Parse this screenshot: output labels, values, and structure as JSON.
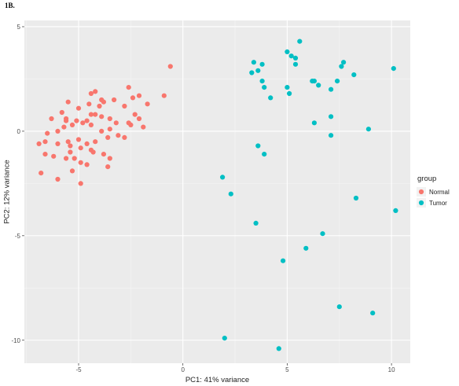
{
  "figure_label": "1B.",
  "chart_data": {
    "type": "scatter",
    "title": "",
    "xlabel": "PC1: 41% variance",
    "ylabel": "PC2: 12% variance",
    "xlim": [
      -7.6,
      10.9
    ],
    "ylim": [
      -11.1,
      5.3
    ],
    "x_ticks": [
      -5,
      0,
      5,
      10
    ],
    "y_ticks": [
      5,
      0,
      -5,
      -10
    ],
    "x_tick_labels": [
      "-5",
      "0",
      "5",
      "10"
    ],
    "y_tick_labels": [
      "5",
      "0",
      "-5",
      "-10"
    ],
    "grid": true,
    "legend_position": "right",
    "legend_title": "group",
    "series": [
      {
        "name": "Normal",
        "color": "#F8766D",
        "points": [
          [
            -0.6,
            3.1
          ],
          [
            -0.9,
            1.7
          ],
          [
            -2.6,
            2.1
          ],
          [
            -2.4,
            1.6
          ],
          [
            -2.1,
            1.7
          ],
          [
            -1.7,
            1.3
          ],
          [
            -2.3,
            0.8
          ],
          [
            -2.8,
            1.2
          ],
          [
            -3.3,
            1.5
          ],
          [
            -3.9,
            1.5
          ],
          [
            -3.8,
            1.4
          ],
          [
            -4.4,
            1.8
          ],
          [
            -4.2,
            1.9
          ],
          [
            -4.0,
            1.2
          ],
          [
            -4.5,
            1.3
          ],
          [
            -5.5,
            1.4
          ],
          [
            -5.0,
            1.1
          ],
          [
            -5.8,
            0.9
          ],
          [
            -6.3,
            0.6
          ],
          [
            -5.6,
            0.6
          ],
          [
            -5.6,
            0.5
          ],
          [
            -5.1,
            0.5
          ],
          [
            -4.6,
            0.5
          ],
          [
            -4.4,
            0.8
          ],
          [
            -4.2,
            0.8
          ],
          [
            -3.9,
            0.7
          ],
          [
            -3.5,
            0.6
          ],
          [
            -3.2,
            0.4
          ],
          [
            -2.6,
            0.4
          ],
          [
            -2.5,
            0.3
          ],
          [
            -2.1,
            0.6
          ],
          [
            -1.9,
            0.2
          ],
          [
            -3.5,
            0.1
          ],
          [
            -3.9,
            0.0
          ],
          [
            -4.4,
            0.3
          ],
          [
            -4.8,
            0.4
          ],
          [
            -5.3,
            0.3
          ],
          [
            -5.7,
            0.2
          ],
          [
            -6.0,
            0.0
          ],
          [
            -6.5,
            -0.1
          ],
          [
            -6.9,
            -0.6
          ],
          [
            -6.6,
            -0.5
          ],
          [
            -6.0,
            -0.6
          ],
          [
            -5.5,
            -0.5
          ],
          [
            -5.0,
            -0.4
          ],
          [
            -4.6,
            -0.6
          ],
          [
            -4.2,
            -0.5
          ],
          [
            -3.6,
            -0.3
          ],
          [
            -3.1,
            -0.2
          ],
          [
            -2.8,
            -0.3
          ],
          [
            -4.4,
            -0.9
          ],
          [
            -4.3,
            -1.0
          ],
          [
            -4.9,
            -0.8
          ],
          [
            -5.4,
            -1.0
          ],
          [
            -5.6,
            -1.3
          ],
          [
            -6.2,
            -1.2
          ],
          [
            -6.6,
            -1.1
          ],
          [
            -5.2,
            -1.3
          ],
          [
            -4.9,
            -1.5
          ],
          [
            -4.6,
            -1.6
          ],
          [
            -3.5,
            -1.3
          ],
          [
            -3.6,
            -1.7
          ],
          [
            -6.8,
            -2.0
          ],
          [
            -6.0,
            -2.3
          ],
          [
            -5.3,
            -1.9
          ],
          [
            -4.9,
            -2.5
          ],
          [
            -3.8,
            -1.1
          ],
          [
            -5.4,
            -0.7
          ]
        ]
      },
      {
        "name": "Tumor",
        "color": "#00BFC4",
        "points": [
          [
            5.6,
            4.3
          ],
          [
            5.0,
            3.8
          ],
          [
            5.2,
            3.6
          ],
          [
            5.4,
            3.5
          ],
          [
            5.4,
            3.2
          ],
          [
            3.4,
            3.3
          ],
          [
            3.8,
            3.2
          ],
          [
            3.6,
            2.9
          ],
          [
            3.3,
            2.8
          ],
          [
            3.8,
            2.4
          ],
          [
            3.9,
            2.1
          ],
          [
            4.2,
            1.6
          ],
          [
            5.0,
            2.1
          ],
          [
            5.1,
            1.8
          ],
          [
            7.7,
            3.3
          ],
          [
            7.6,
            3.1
          ],
          [
            7.4,
            2.4
          ],
          [
            8.2,
            2.7
          ],
          [
            6.3,
            2.4
          ],
          [
            6.2,
            2.4
          ],
          [
            6.5,
            2.2
          ],
          [
            7.1,
            2.0
          ],
          [
            10.1,
            3.0
          ],
          [
            7.1,
            0.7
          ],
          [
            6.3,
            0.4
          ],
          [
            8.9,
            0.1
          ],
          [
            7.1,
            -0.2
          ],
          [
            3.6,
            -0.7
          ],
          [
            3.9,
            -1.1
          ],
          [
            1.9,
            -2.2
          ],
          [
            2.3,
            -3.0
          ],
          [
            8.3,
            -3.2
          ],
          [
            10.2,
            -3.8
          ],
          [
            3.5,
            -4.4
          ],
          [
            6.7,
            -4.9
          ],
          [
            5.9,
            -5.6
          ],
          [
            4.8,
            -6.2
          ],
          [
            7.5,
            -8.4
          ],
          [
            9.1,
            -8.7
          ],
          [
            2.0,
            -9.9
          ],
          [
            4.6,
            -10.4
          ]
        ]
      }
    ]
  }
}
